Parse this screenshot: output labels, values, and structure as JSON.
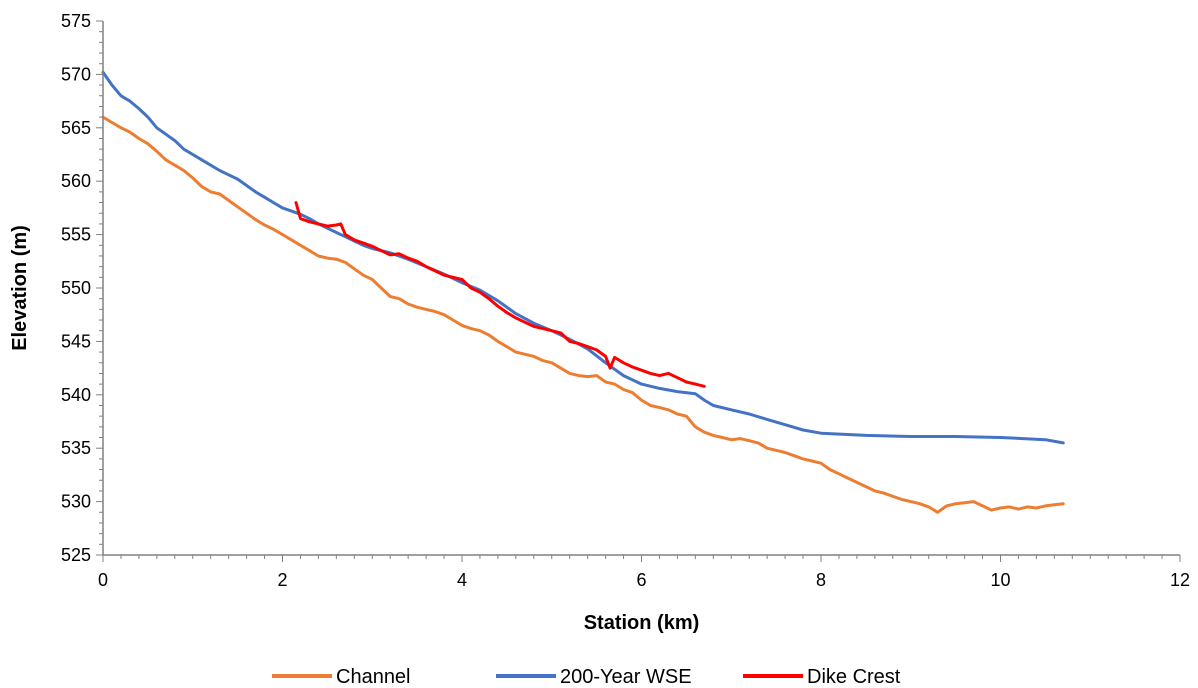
{
  "chart_data": {
    "type": "line",
    "title": "",
    "xlabel": "Station (km)",
    "ylabel": "Elevation (m)",
    "xlim": [
      0,
      12
    ],
    "ylim": [
      525,
      575
    ],
    "x_ticks": [
      0,
      2,
      4,
      6,
      8,
      10,
      12
    ],
    "y_ticks": [
      525,
      530,
      535,
      540,
      545,
      550,
      555,
      560,
      565,
      570,
      575
    ],
    "grid": false,
    "legend_position": "bottom",
    "series": [
      {
        "name": "Channel",
        "color": "#ED7D31",
        "x": [
          0,
          0.1,
          0.2,
          0.3,
          0.4,
          0.5,
          0.6,
          0.7,
          0.8,
          0.9,
          1.0,
          1.1,
          1.2,
          1.3,
          1.4,
          1.5,
          1.6,
          1.7,
          1.8,
          1.9,
          2.0,
          2.1,
          2.2,
          2.3,
          2.4,
          2.5,
          2.6,
          2.7,
          2.8,
          2.9,
          3.0,
          3.1,
          3.2,
          3.3,
          3.4,
          3.5,
          3.6,
          3.7,
          3.8,
          3.9,
          4.0,
          4.1,
          4.2,
          4.3,
          4.4,
          4.5,
          4.6,
          4.7,
          4.8,
          4.9,
          5.0,
          5.1,
          5.2,
          5.3,
          5.4,
          5.5,
          5.6,
          5.7,
          5.8,
          5.9,
          6.0,
          6.1,
          6.2,
          6.3,
          6.4,
          6.5,
          6.6,
          6.7,
          6.8,
          6.9,
          7.0,
          7.1,
          7.2,
          7.3,
          7.4,
          7.5,
          7.6,
          7.7,
          7.8,
          7.9,
          8.0,
          8.1,
          8.2,
          8.3,
          8.4,
          8.5,
          8.6,
          8.7,
          8.8,
          8.9,
          9.0,
          9.1,
          9.2,
          9.3,
          9.4,
          9.5,
          9.6,
          9.7,
          9.8,
          9.9,
          10.0,
          10.1,
          10.2,
          10.3,
          10.4,
          10.5,
          10.6,
          10.7
        ],
        "y": [
          566.0,
          565.5,
          565.0,
          564.6,
          564.0,
          563.5,
          562.8,
          562.0,
          561.5,
          561.0,
          560.3,
          559.5,
          559.0,
          558.8,
          558.2,
          557.6,
          557.0,
          556.4,
          555.9,
          555.5,
          555.0,
          554.5,
          554.0,
          553.5,
          553.0,
          552.8,
          552.7,
          552.4,
          551.8,
          551.2,
          550.8,
          550.0,
          549.2,
          549.0,
          548.5,
          548.2,
          548.0,
          547.8,
          547.5,
          547.0,
          546.5,
          546.2,
          546.0,
          545.6,
          545.0,
          544.5,
          544.0,
          543.8,
          543.6,
          543.2,
          543.0,
          542.5,
          542.0,
          541.8,
          541.7,
          541.8,
          541.2,
          541.0,
          540.5,
          540.2,
          539.5,
          539.0,
          538.8,
          538.6,
          538.2,
          538.0,
          537.0,
          536.5,
          536.2,
          536.0,
          535.8,
          535.9,
          535.7,
          535.5,
          535.0,
          534.8,
          534.6,
          534.3,
          534.0,
          533.8,
          533.6,
          533.0,
          532.6,
          532.2,
          531.8,
          531.4,
          531.0,
          530.8,
          530.5,
          530.2,
          530.0,
          529.8,
          529.5,
          529.0,
          529.6,
          529.8,
          529.9,
          530.0,
          529.6,
          529.2,
          529.4,
          529.5,
          529.3,
          529.5,
          529.4,
          529.6,
          529.7,
          529.8
        ]
      },
      {
        "name": "200-Year WSE",
        "color": "#4472C4",
        "x": [
          0,
          0.1,
          0.2,
          0.3,
          0.4,
          0.5,
          0.6,
          0.7,
          0.8,
          0.9,
          1.0,
          1.1,
          1.2,
          1.3,
          1.4,
          1.5,
          1.6,
          1.7,
          1.8,
          1.9,
          2.0,
          2.1,
          2.2,
          2.3,
          2.4,
          2.5,
          2.6,
          2.7,
          2.8,
          2.9,
          3.0,
          3.2,
          3.4,
          3.6,
          3.8,
          4.0,
          4.2,
          4.4,
          4.6,
          4.8,
          5.0,
          5.2,
          5.4,
          5.6,
          5.8,
          6.0,
          6.2,
          6.4,
          6.6,
          6.7,
          6.8,
          7.0,
          7.2,
          7.4,
          7.6,
          7.8,
          8.0,
          8.5,
          9.0,
          9.5,
          10.0,
          10.5,
          10.7
        ],
        "y": [
          570.2,
          569.0,
          568.0,
          567.5,
          566.8,
          566.0,
          565.0,
          564.4,
          563.8,
          563.0,
          562.5,
          562.0,
          561.5,
          561.0,
          560.6,
          560.2,
          559.6,
          559.0,
          558.5,
          558.0,
          557.5,
          557.2,
          556.9,
          556.5,
          556.0,
          555.6,
          555.2,
          554.8,
          554.4,
          554.0,
          553.7,
          553.3,
          552.7,
          552.0,
          551.3,
          550.5,
          549.8,
          548.8,
          547.6,
          546.7,
          546.0,
          545.2,
          544.3,
          543.0,
          541.8,
          541.0,
          540.6,
          540.3,
          540.1,
          539.5,
          539.0,
          538.6,
          538.2,
          537.7,
          537.2,
          536.7,
          536.4,
          536.2,
          536.1,
          536.1,
          536.0,
          535.8,
          535.5
        ]
      },
      {
        "name": "Dike Crest",
        "color": "#FF0000",
        "x": [
          2.15,
          2.2,
          2.3,
          2.4,
          2.5,
          2.6,
          2.65,
          2.7,
          2.8,
          2.9,
          3.0,
          3.1,
          3.2,
          3.3,
          3.4,
          3.5,
          3.6,
          3.7,
          3.8,
          3.9,
          4.0,
          4.1,
          4.2,
          4.3,
          4.4,
          4.5,
          4.6,
          4.7,
          4.8,
          4.9,
          5.0,
          5.1,
          5.15,
          5.2,
          5.3,
          5.4,
          5.5,
          5.6,
          5.65,
          5.7,
          5.8,
          5.9,
          6.0,
          6.1,
          6.2,
          6.3,
          6.4,
          6.5,
          6.6,
          6.7
        ],
        "y": [
          558.0,
          556.5,
          556.2,
          556.0,
          555.8,
          555.9,
          556.0,
          555.0,
          554.5,
          554.2,
          553.9,
          553.5,
          553.1,
          553.2,
          552.8,
          552.5,
          552.0,
          551.6,
          551.2,
          551.0,
          550.8,
          550.0,
          549.6,
          549.0,
          548.3,
          547.7,
          547.2,
          546.8,
          546.4,
          546.2,
          546.0,
          545.8,
          545.4,
          545.0,
          544.8,
          544.5,
          544.2,
          543.6,
          542.5,
          543.5,
          543.0,
          542.6,
          542.3,
          542.0,
          541.8,
          542.0,
          541.6,
          541.2,
          541.0,
          540.8
        ]
      }
    ]
  }
}
